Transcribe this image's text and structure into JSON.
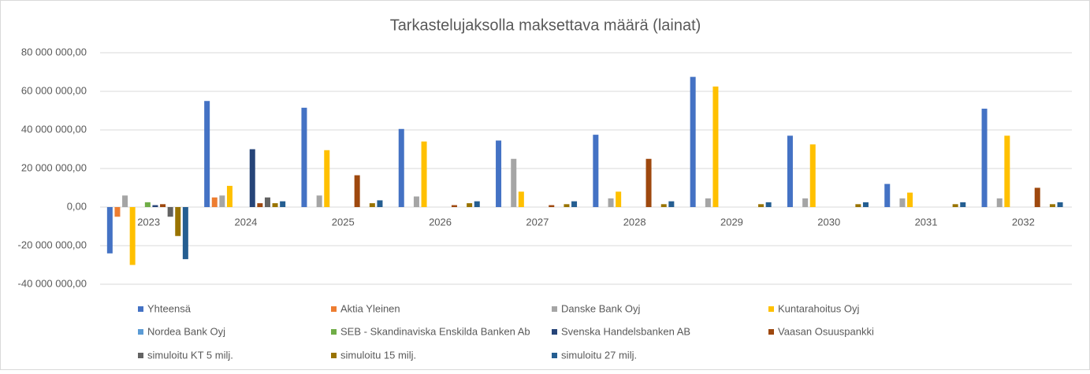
{
  "chart_data": {
    "type": "bar",
    "title": "Tarkastelujaksolla  maksettava määrä (lainat)",
    "categories": [
      "2023",
      "2024",
      "2025",
      "2026",
      "2027",
      "2028",
      "2029",
      "2030",
      "2031",
      "2032"
    ],
    "series": [
      {
        "name": "Yhteensä",
        "color": "#4472c4",
        "values": [
          -24000000,
          55000000,
          51500000,
          40500000,
          34500000,
          37500000,
          67500000,
          37000000,
          12000000,
          51000000
        ]
      },
      {
        "name": "Aktia Yleinen",
        "color": "#ed7d31",
        "values": [
          -5000000,
          5000000,
          0,
          0,
          0,
          0,
          0,
          0,
          0,
          0
        ]
      },
      {
        "name": "Danske Bank Oyj",
        "color": "#a5a5a5",
        "values": [
          6000000,
          6000000,
          6000000,
          5500000,
          25000000,
          4500000,
          4500000,
          4500000,
          4500000,
          4500000
        ]
      },
      {
        "name": "Kuntarahoitus Oyj",
        "color": "#ffc000",
        "values": [
          -30000000,
          11000000,
          29500000,
          34000000,
          8000000,
          8000000,
          62500000,
          32500000,
          7500000,
          37000000
        ]
      },
      {
        "name": "Nordea Bank Oyj",
        "color": "#5b9bd5",
        "values": [
          0,
          0,
          0,
          0,
          0,
          0,
          0,
          0,
          0,
          0
        ]
      },
      {
        "name": "SEB - Skandinaviska Enskilda Banken Ab",
        "color": "#70ad47",
        "values": [
          2500000,
          0,
          0,
          0,
          0,
          0,
          0,
          0,
          0,
          0
        ]
      },
      {
        "name": "Svenska Handelsbanken AB",
        "color": "#264478",
        "values": [
          1000000,
          30000000,
          0,
          0,
          0,
          0,
          0,
          0,
          0,
          0
        ]
      },
      {
        "name": "Vaasan Osuuspankki",
        "color": "#9e480e",
        "values": [
          1500000,
          2000000,
          16500000,
          1000000,
          1000000,
          25000000,
          0,
          0,
          0,
          10000000
        ]
      },
      {
        "name": "simuloitu KT 5 milj.",
        "color": "#636363",
        "values": [
          -5000000,
          5000000,
          0,
          0,
          0,
          0,
          0,
          0,
          0,
          0
        ]
      },
      {
        "name": "simuloitu 15 milj.",
        "color": "#997300",
        "values": [
          -15000000,
          2000000,
          2000000,
          2000000,
          1500000,
          1500000,
          1500000,
          1500000,
          1500000,
          1500000
        ]
      },
      {
        "name": "simuloitu 27 milj.",
        "color": "#255e91",
        "values": [
          -27000000,
          3000000,
          3500000,
          3000000,
          3000000,
          3000000,
          2500000,
          2500000,
          2500000,
          2500000
        ]
      }
    ],
    "ylim": [
      -40000000,
      80000000
    ],
    "yticks": [
      {
        "value": -40000000,
        "label": "-40 000 000,00"
      },
      {
        "value": -20000000,
        "label": "-20 000 000,00"
      },
      {
        "value": 0,
        "label": "0,00"
      },
      {
        "value": 20000000,
        "label": "20 000 000,00"
      },
      {
        "value": 40000000,
        "label": "40 000 000,00"
      },
      {
        "value": 60000000,
        "label": "60 000 000,00"
      },
      {
        "value": 80000000,
        "label": "80 000 000,00"
      }
    ],
    "grid": true
  }
}
